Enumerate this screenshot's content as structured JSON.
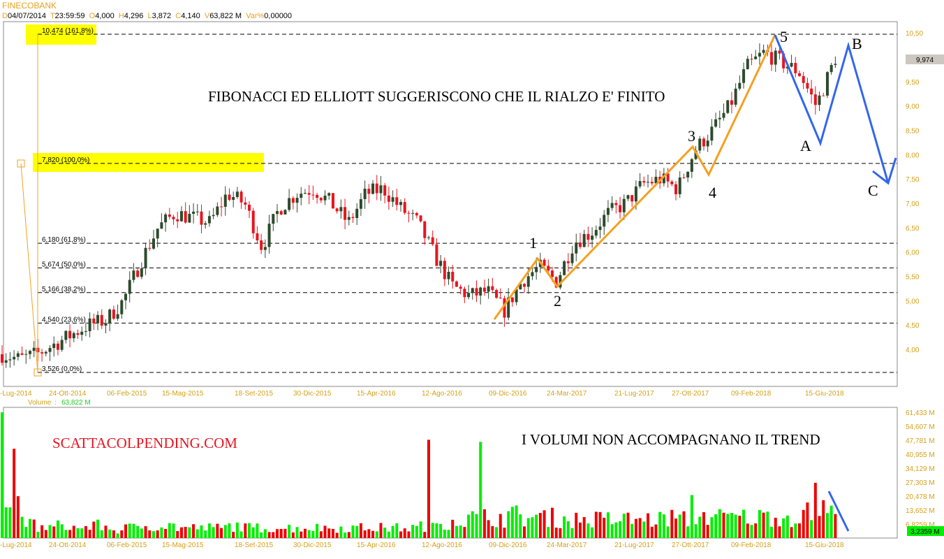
{
  "header": {
    "title": "FINECOBANK",
    "d_label": "D",
    "date": "04/07/2014",
    "t_label": "T",
    "time": "23:59:59",
    "o_label": "O",
    "open": "4,000",
    "h_label": "H",
    "high": "4,296",
    "l_label": "L",
    "low": "3,872",
    "c_label": "C",
    "close": "4,140",
    "v_label": "V",
    "volume": "63,822 M",
    "var_label": "Var%",
    "var": "0,00000"
  },
  "annotations": {
    "main_text": "FIBONACCI ED ELLIOTT SUGGERISCONO CHE IL RIALZO E' FINITO",
    "volume_text": "I VOLUMI NON ACCOMPAGNANO IL TREND",
    "watermark": "SCATTACOLPENDING.COM",
    "waves": [
      "1",
      "2",
      "3",
      "4",
      "5",
      "A",
      "B",
      "C"
    ]
  },
  "volume_legend": {
    "label": "Volume",
    "sep": ":",
    "value": "63,822 M"
  },
  "last_price": "9,974",
  "last_volume": "3,2359 M",
  "colors": {
    "up_candle": "#2d4a2d",
    "down_candle": "#e8141e",
    "vol_up": "#00ee00",
    "vol_down": "#ee0000",
    "fib_box": "#ffff00",
    "impulse": "#f5a020",
    "correction": "#3366ee",
    "axis_text": "#d4a017"
  },
  "chart_data": [
    {
      "type": "candlestick",
      "period": "weekly",
      "fibonacci": [
        {
          "value": 10.474,
          "label": "10,474 (161,8%)"
        },
        {
          "value": 7.82,
          "label": "7,820 (100,0%)"
        },
        {
          "value": 6.18,
          "label": "6,180 (61,8%)"
        },
        {
          "value": 5.674,
          "label": "5,674 (50,0%)"
        },
        {
          "value": 5.166,
          "label": "5,166 (38,2%)"
        },
        {
          "value": 4.54,
          "label": "4,540 (23,6%)"
        },
        {
          "value": 3.526,
          "label": "3,526 (0,0%)"
        }
      ],
      "yticks": [
        "10,50",
        "9,50",
        "9,00",
        "8,50",
        "8,00",
        "7,50",
        "7,00",
        "6,50",
        "6,00",
        "5,50",
        "5,00",
        "4,50",
        "4,00"
      ],
      "ytick_values": [
        10.5,
        9.5,
        9.0,
        8.5,
        8.0,
        7.5,
        7.0,
        6.5,
        6.0,
        5.5,
        5.0,
        4.5,
        4.0
      ],
      "xticks": [
        "-Lug-2014",
        "24-Ott-2014",
        "06-Feb-2015",
        "15-Mag-2015",
        "18-Set-2015",
        "30-Dic-2015",
        "15-Apr-2016",
        "12-Ago-2016",
        "09-Dic-2016",
        "24-Mar-2017",
        "21-Lug-2017",
        "27-Ott-2017",
        "09-Feb-2018",
        "15-Giu-2018"
      ],
      "monthly_close_approx": {
        "start": "Lug-2014",
        "values": [
          3.9,
          3.8,
          3.9,
          4.1,
          4.3,
          4.5,
          4.6,
          5.0,
          5.8,
          6.5,
          6.8,
          6.7,
          6.6,
          7.2,
          7.0,
          6.1,
          6.9,
          7.2,
          7.3,
          7.0,
          6.6,
          7.2,
          7.3,
          6.9,
          6.6,
          5.9,
          5.3,
          5.1,
          5.2,
          4.8,
          5.4,
          5.7,
          5.4,
          6.2,
          6.4,
          6.8,
          7.0,
          7.4,
          7.5,
          7.3,
          8.1,
          8.5,
          9.0,
          9.8,
          10.1,
          9.9,
          9.7,
          9.0,
          9.9
        ]
      },
      "ylim": [
        3.3,
        10.7
      ]
    },
    {
      "type": "bar",
      "title": "Volume",
      "yticks": [
        "61,433 M",
        "54,607 M",
        "47,781 M",
        "40,955 M",
        "34,129 M",
        "27,303 M",
        "20,478 M",
        "13,652 M",
        "6,8259 M"
      ],
      "ytick_values": [
        61.433,
        54.607,
        47.781,
        40.955,
        34.129,
        27.303,
        20.478,
        13.652,
        6.8259
      ],
      "monthly_volume_approx_M": [
        30,
        7,
        5,
        6,
        5,
        6,
        4,
        5,
        6,
        6,
        5,
        5,
        5,
        6,
        5,
        5,
        5,
        5,
        5,
        5,
        5,
        5,
        5,
        5,
        6,
        8,
        9,
        10,
        10,
        11,
        10,
        10,
        9,
        9,
        9,
        9,
        9,
        9,
        10,
        9,
        11,
        10,
        10,
        10,
        11,
        10,
        12,
        14,
        10
      ],
      "spikes": [
        {
          "date": "Lug-2014",
          "value": 61.4,
          "dir": "up"
        },
        {
          "date": "Ago-2016",
          "value": 48,
          "dir": "down"
        },
        {
          "date": "Ott-2016",
          "value": 47,
          "dir": "up"
        },
        {
          "date": "Ott-2017",
          "value": 21,
          "dir": "up"
        },
        {
          "date": "Giu-2018",
          "value": 27,
          "dir": "down"
        }
      ],
      "ylim": [
        0,
        65
      ]
    }
  ]
}
